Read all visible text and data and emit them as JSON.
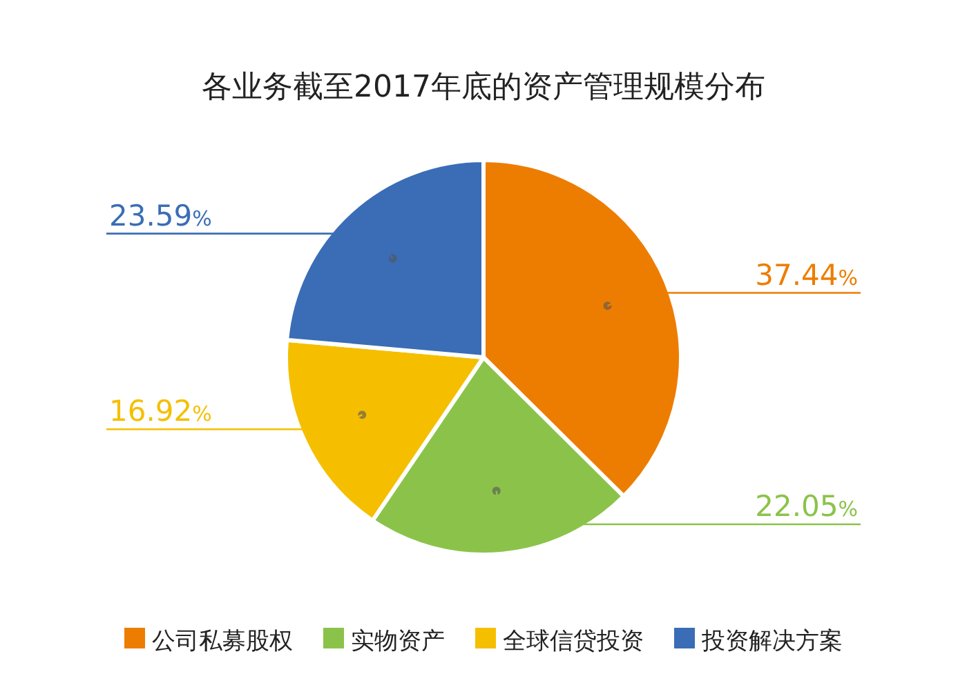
{
  "chart_data": {
    "type": "pie",
    "title": "各业务截至2017年底的资产管理规模分布",
    "categories": [
      "公司私募股权",
      "实物资产",
      "全球信贷投资",
      "投资解决方案"
    ],
    "values": [
      37.44,
      22.05,
      16.92,
      23.59
    ],
    "colors": [
      "#ed7d00",
      "#8bc34a",
      "#f5bf00",
      "#3a6db5"
    ],
    "value_labels": [
      "37.44%",
      "22.05%",
      "16.92%",
      "23.59%"
    ],
    "legend": "bottom"
  }
}
